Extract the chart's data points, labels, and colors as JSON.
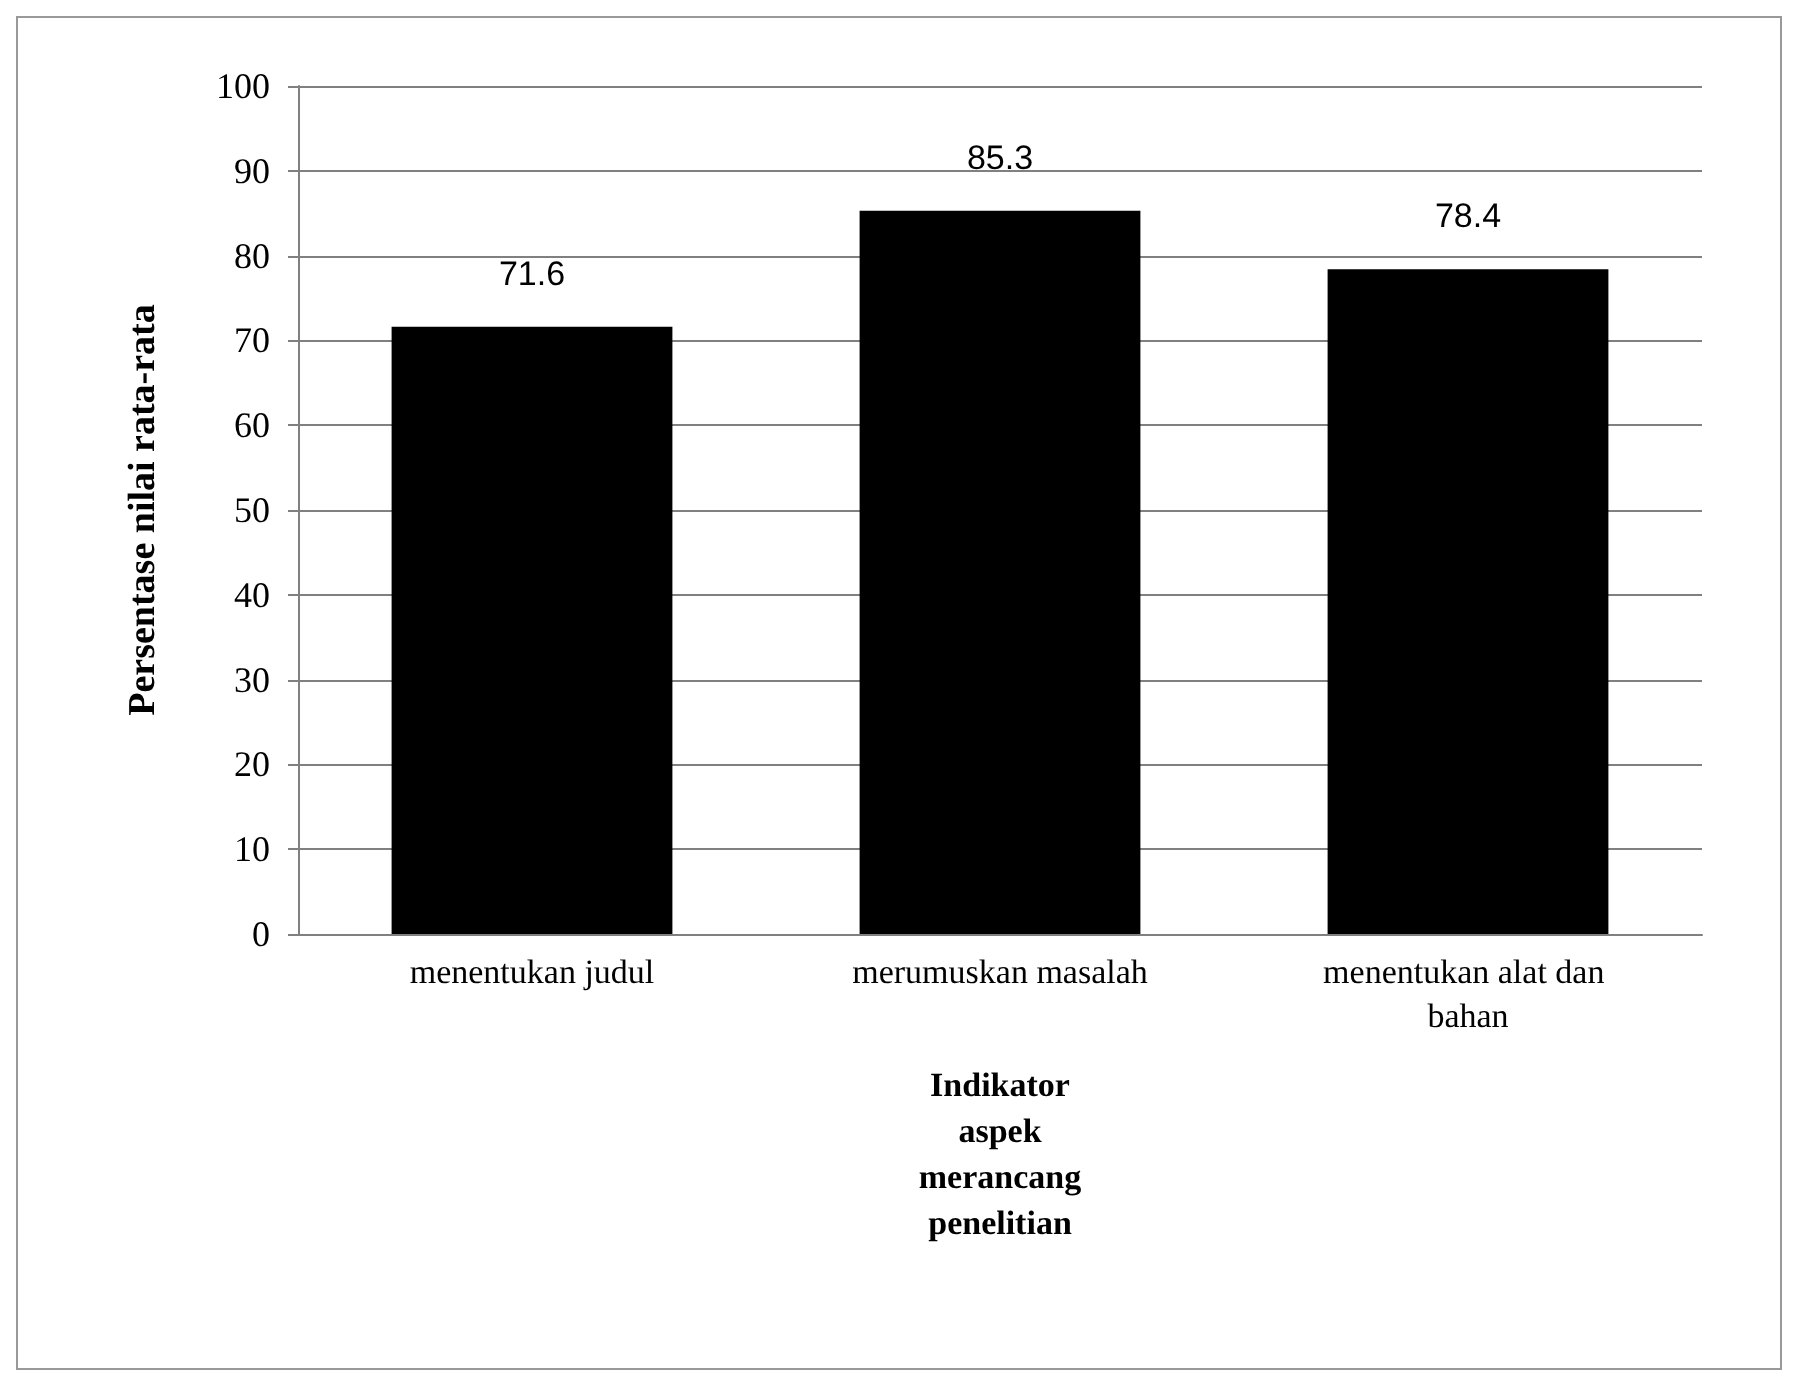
{
  "chart_data": {
    "type": "bar",
    "xlabel": "Indikator aspek merancang penelitian",
    "ylabel": "Persentase nilai rata-rata",
    "categories": [
      "menentukan judul",
      "merumuskan masalah",
      "menentukan alat dan bahan"
    ],
    "values": [
      71.6,
      85.3,
      78.4
    ],
    "color": "#000000",
    "ylim": [
      0,
      100
    ],
    "yticks": [
      0,
      10,
      20,
      30,
      40,
      50,
      60,
      70,
      80,
      90,
      100
    ],
    "grid": "y",
    "data_labels": true
  }
}
